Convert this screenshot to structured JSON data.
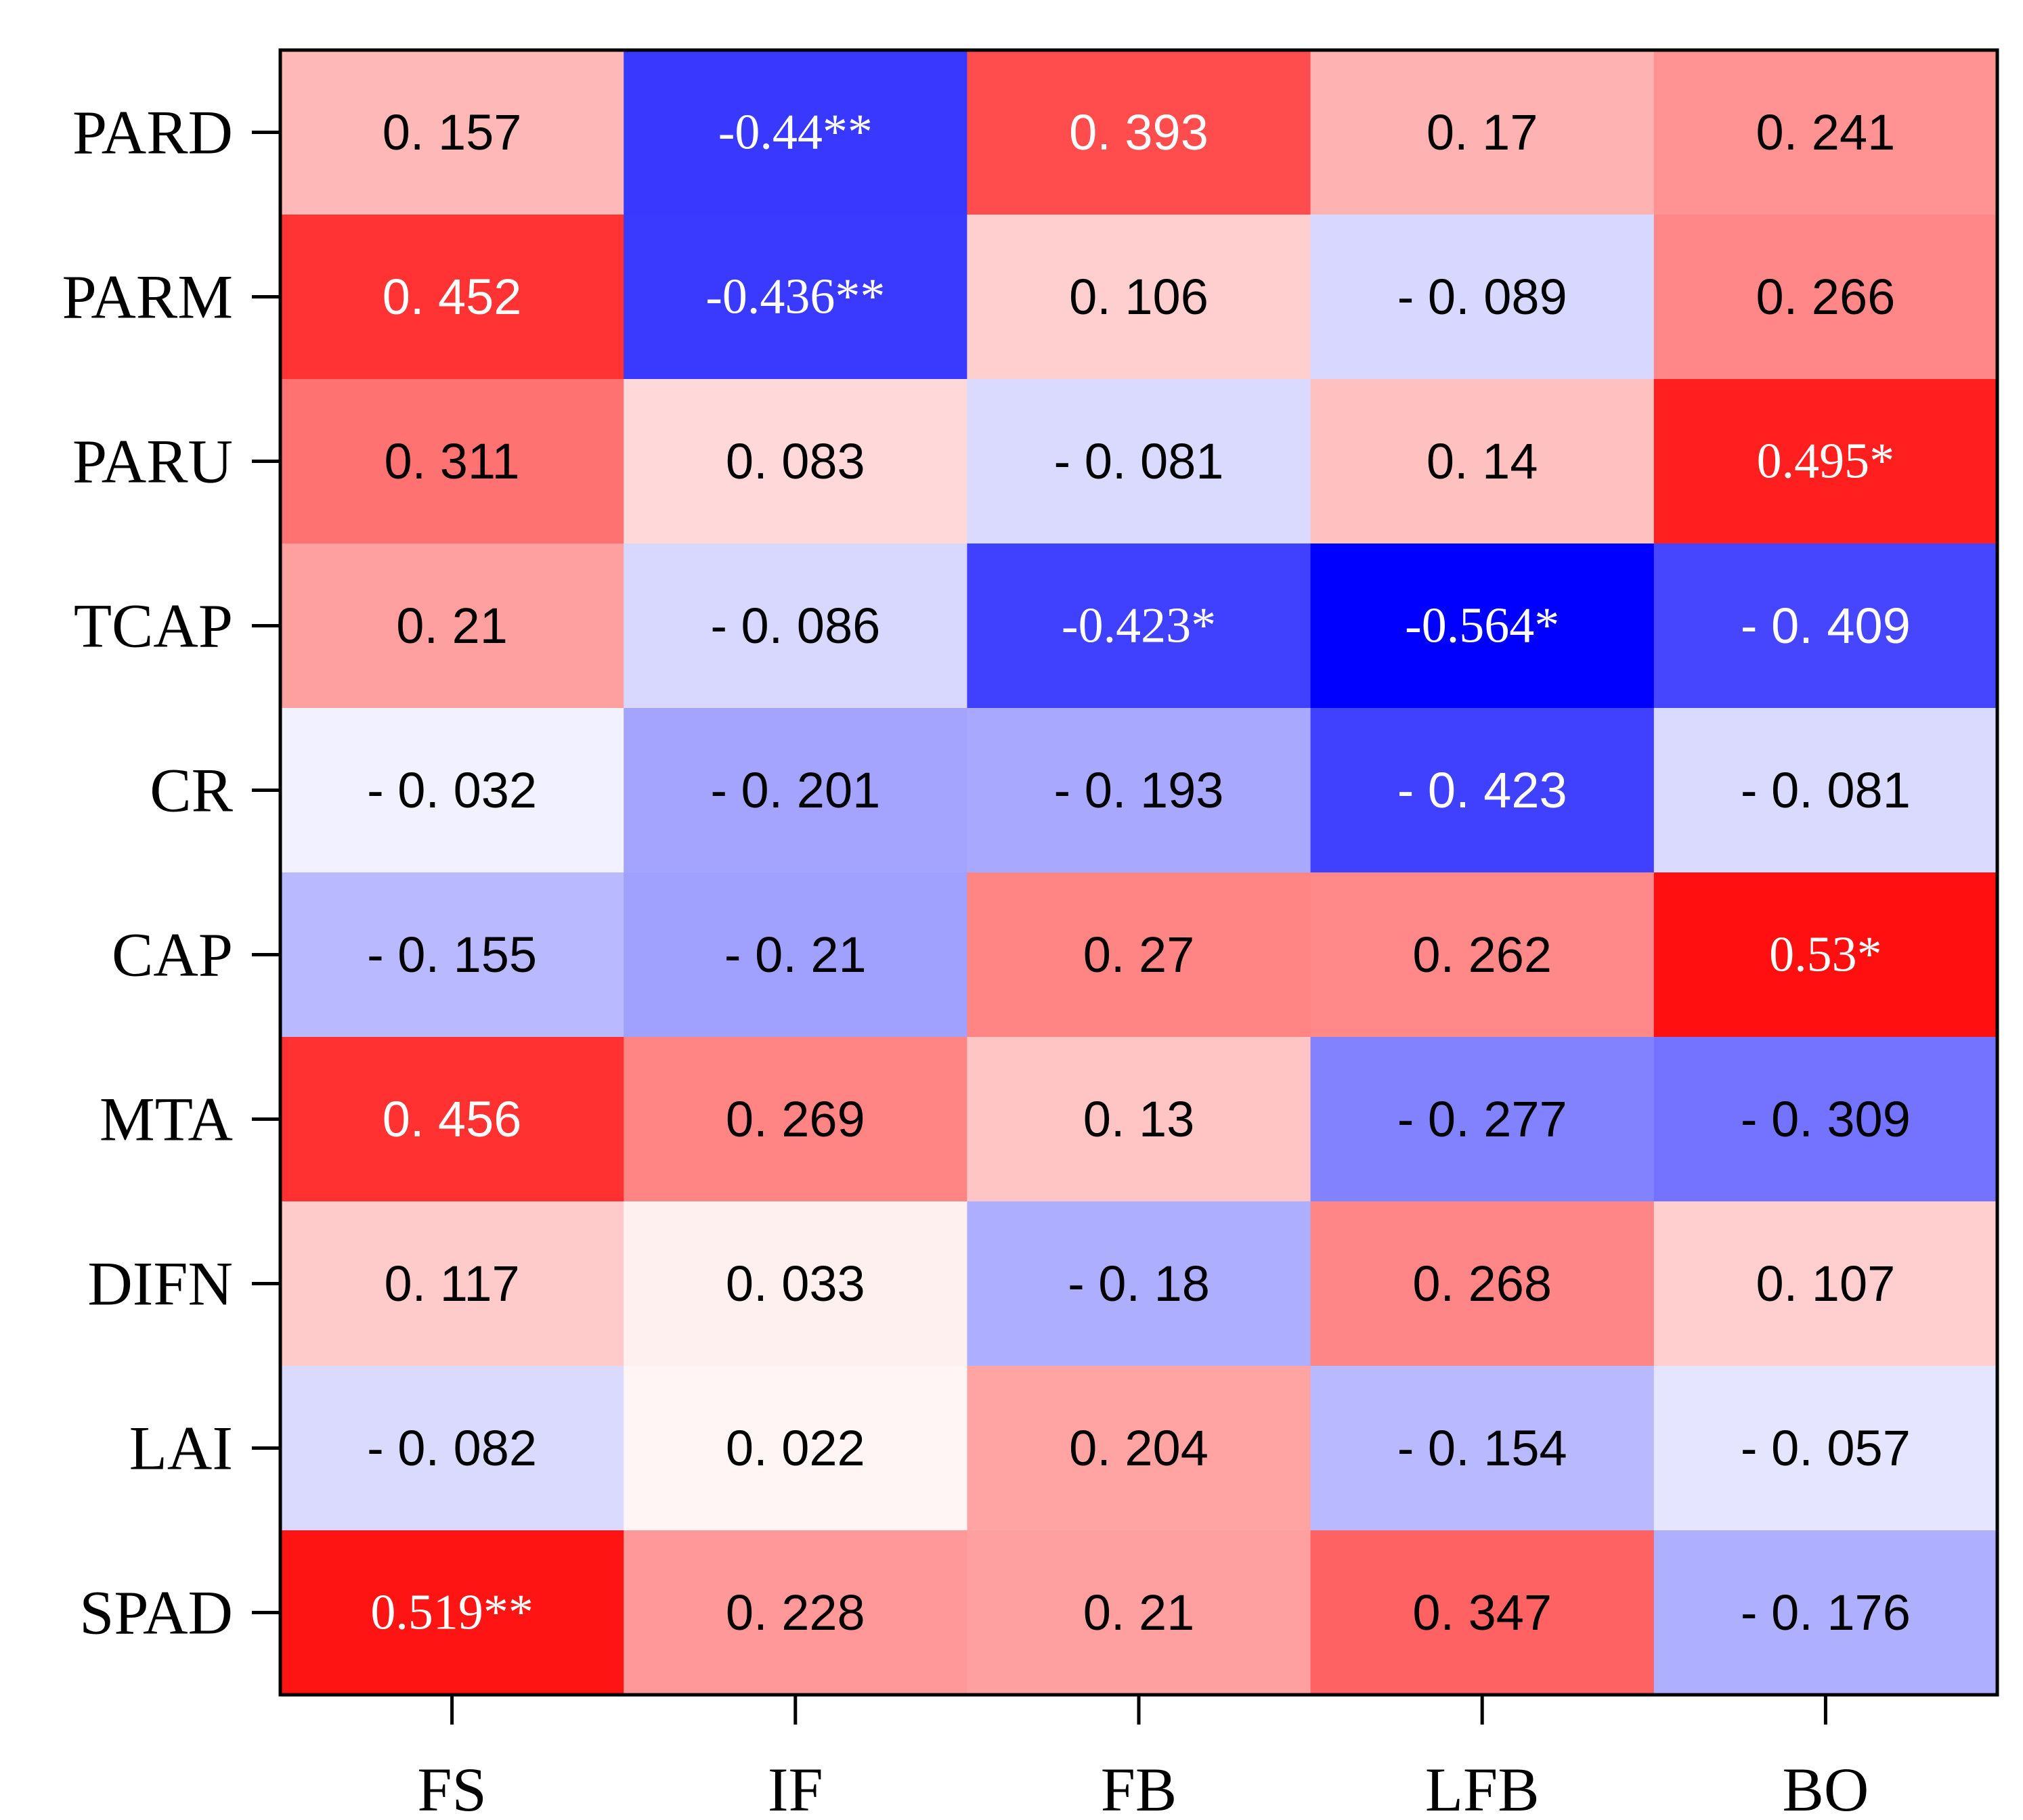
{
  "chart_data": {
    "type": "heatmap",
    "title": "",
    "xlabel": "",
    "ylabel": "",
    "x_categories": [
      "FS",
      "IF",
      "FB",
      "LFB",
      "BO"
    ],
    "y_categories": [
      "PARD",
      "PARM",
      "PARU",
      "TCAP",
      "CR",
      "CAP",
      "MTA",
      "DIFN",
      "LAI",
      "SPAD"
    ],
    "values": [
      [
        0.157,
        -0.44,
        0.393,
        0.17,
        0.241
      ],
      [
        0.452,
        -0.436,
        0.106,
        -0.089,
        0.266
      ],
      [
        0.311,
        0.083,
        -0.081,
        0.14,
        0.495
      ],
      [
        0.21,
        -0.086,
        -0.423,
        -0.564,
        -0.409
      ],
      [
        -0.032,
        -0.201,
        -0.193,
        -0.423,
        -0.081
      ],
      [
        -0.155,
        -0.21,
        0.27,
        0.262,
        0.53
      ],
      [
        0.456,
        0.269,
        0.13,
        -0.277,
        -0.309
      ],
      [
        0.117,
        0.033,
        -0.18,
        0.268,
        0.107
      ],
      [
        -0.082,
        0.022,
        0.204,
        -0.154,
        -0.057
      ],
      [
        0.519,
        0.228,
        0.21,
        0.347,
        -0.176
      ]
    ],
    "labels": [
      [
        "0. 157",
        "-0.44**",
        "0. 393",
        "0. 17",
        "0. 241"
      ],
      [
        "0. 452",
        "-0.436**",
        "0. 106",
        "- 0. 089",
        "0. 266"
      ],
      [
        "0. 311",
        "0. 083",
        "- 0. 081",
        "0. 14",
        "0.495*"
      ],
      [
        "0. 21",
        "- 0. 086",
        "-0.423*",
        "-0.564*",
        "- 0. 409"
      ],
      [
        "- 0. 032",
        "- 0. 201",
        "- 0. 193",
        "- 0. 423",
        "- 0. 081"
      ],
      [
        "- 0. 155",
        "- 0. 21",
        "0. 27",
        "0. 262",
        "0.53*"
      ],
      [
        "0. 456",
        "0. 269",
        "0. 13",
        "- 0. 277",
        "- 0. 309"
      ],
      [
        "0. 117",
        "0. 033",
        "- 0. 18",
        "0. 268",
        "0. 107"
      ],
      [
        "- 0. 082",
        "0. 022",
        "0. 204",
        "- 0. 154",
        "- 0. 057"
      ],
      [
        "0.519**",
        "0. 228",
        "0. 21",
        "0. 347",
        "- 0. 176"
      ]
    ],
    "colormap": {
      "name": "bwr",
      "vmin": -0.564,
      "vmax": 0.53,
      "low_color": "#0000ff",
      "mid_color": "#ffffff",
      "high_color": "#ff0000"
    },
    "grid": false,
    "legend": "none"
  }
}
